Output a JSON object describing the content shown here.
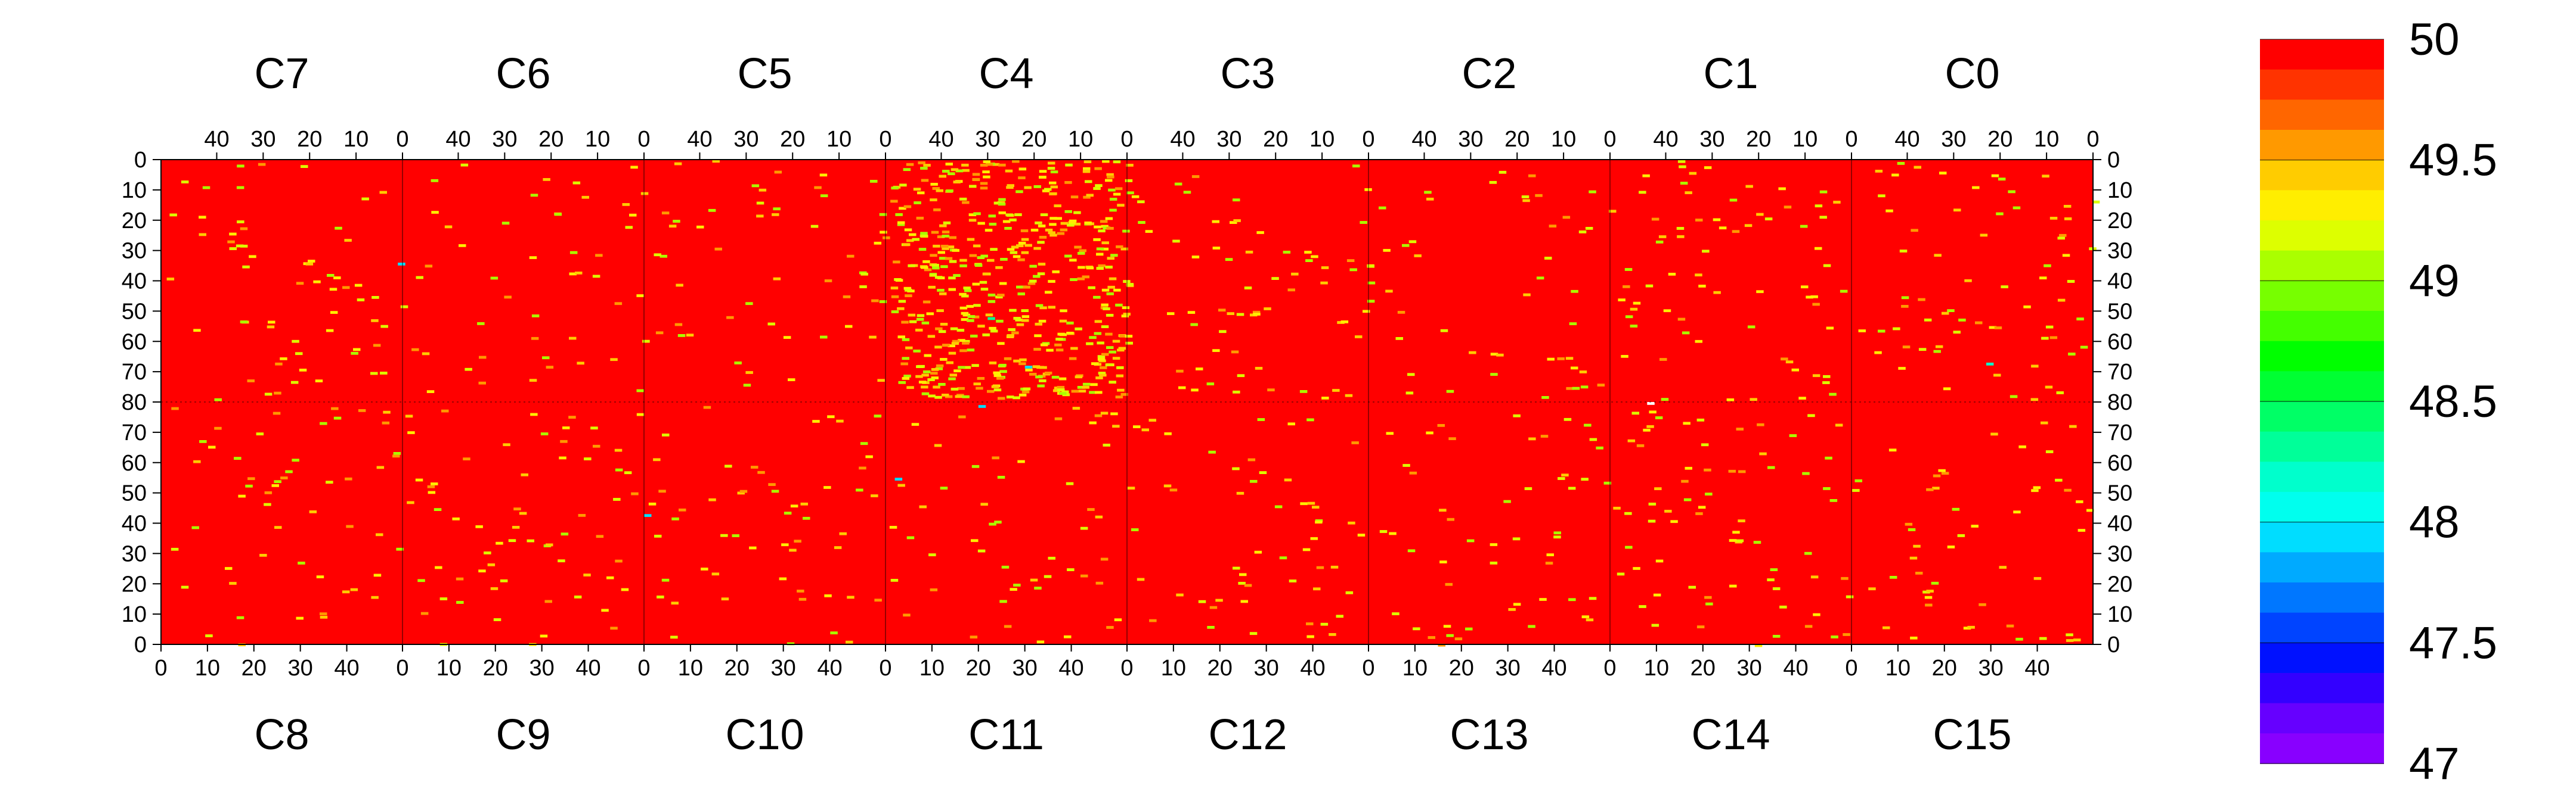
{
  "chart_data": {
    "type": "heatmap",
    "top_chips": [
      "C7",
      "C6",
      "C5",
      "C4",
      "C3",
      "C2",
      "C1",
      "C0"
    ],
    "bottom_chips": [
      "C8",
      "C9",
      "C10",
      "C11",
      "C12",
      "C13",
      "C14",
      "C15"
    ],
    "top_x_ticks": [
      "40",
      "30",
      "20",
      "10",
      "0"
    ],
    "top_x_tick_values": [
      40,
      30,
      20,
      10,
      0
    ],
    "bottom_x_ticks": [
      "0",
      "10",
      "20",
      "30",
      "40"
    ],
    "bottom_x_tick_values": [
      0,
      10,
      20,
      30,
      40
    ],
    "x_range_per_chip": [
      0,
      52
    ],
    "y_top_ticks": [
      "0",
      "10",
      "20",
      "30",
      "40",
      "50",
      "60",
      "70",
      "80"
    ],
    "y_top_tick_values": [
      0,
      10,
      20,
      30,
      40,
      50,
      60,
      70,
      80
    ],
    "y_bottom_ticks": [
      "70",
      "60",
      "50",
      "40",
      "30",
      "20",
      "10",
      "0"
    ],
    "y_bottom_tick_values": [
      70,
      60,
      50,
      40,
      30,
      20,
      10,
      0
    ],
    "y_range_per_half": [
      0,
      80
    ],
    "background_value": 50,
    "colorbar": {
      "range": [
        47,
        50
      ],
      "tick_labels": [
        "50",
        "49.5",
        "49",
        "48.5",
        "48",
        "47.5",
        "47"
      ],
      "tick_values": [
        50,
        49.5,
        49,
        48.5,
        48,
        47.5,
        47
      ],
      "colors": [
        "#ff0000",
        "#ff3300",
        "#ff6600",
        "#ff9900",
        "#ffcc00",
        "#ffee00",
        "#ddff00",
        "#aaff00",
        "#77ff00",
        "#44ff00",
        "#00ff00",
        "#00ff33",
        "#00ff66",
        "#00ff99",
        "#00ffcc",
        "#00ffee",
        "#00ddff",
        "#00aaff",
        "#0077ff",
        "#0044ff",
        "#0011ff",
        "#3300ff",
        "#6600ff",
        "#8800ff"
      ]
    },
    "description_density": {
      "C4": "high",
      "default": "sparse"
    },
    "sample_outlier_pixels": [
      {
        "chip": "C4",
        "x": 30,
        "y": 52,
        "value": 48.3
      },
      {
        "chip": "C4",
        "x": 22,
        "y": 68,
        "value": 48.0
      },
      {
        "chip": "C7",
        "x": 1,
        "y": 34,
        "value": 47.9
      },
      {
        "chip": "C11",
        "x": 2,
        "y": 55,
        "value": 48.0
      },
      {
        "chip": "C10",
        "x": 0,
        "y": 43,
        "value": 47.9
      },
      {
        "chip": "C14",
        "x": 8,
        "y": 80,
        "value": 50.0
      },
      {
        "chip": "C0",
        "x": 23,
        "y": 67,
        "value": 48.2
      },
      {
        "chip": "C11",
        "x": 20,
        "y": 79,
        "value": 48.0
      }
    ]
  }
}
